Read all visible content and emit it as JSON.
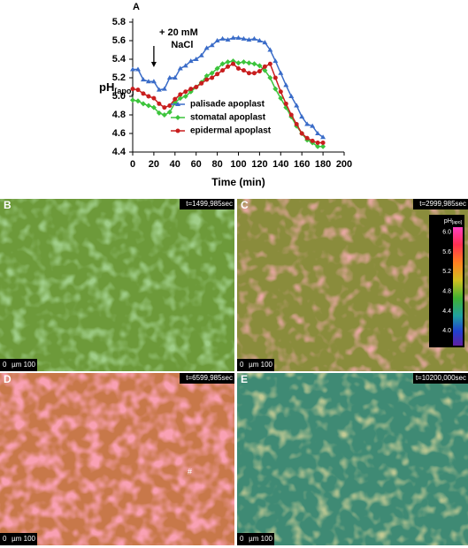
{
  "chart_data": {
    "type": "line",
    "panel_label": "A",
    "xlabel": "Time (min)",
    "ylabel": "pH",
    "ylabel_sub": "[apo]",
    "x": [
      0,
      5,
      10,
      15,
      20,
      25,
      30,
      35,
      40,
      45,
      50,
      55,
      60,
      65,
      70,
      75,
      80,
      85,
      90,
      95,
      100,
      105,
      110,
      115,
      120,
      125,
      130,
      135,
      140,
      145,
      150,
      155,
      160,
      165,
      170,
      175,
      180
    ],
    "series": [
      {
        "name": "palisade apoplast",
        "color": "#3a6cc8",
        "marker": "triangle",
        "values": [
          5.29,
          5.29,
          5.18,
          5.16,
          5.16,
          5.07,
          5.08,
          5.2,
          5.2,
          5.3,
          5.33,
          5.38,
          5.4,
          5.44,
          5.52,
          5.55,
          5.6,
          5.62,
          5.61,
          5.63,
          5.63,
          5.62,
          5.61,
          5.62,
          5.6,
          5.58,
          5.5,
          5.38,
          5.25,
          5.12,
          5.0,
          4.9,
          4.78,
          4.7,
          4.68,
          4.6,
          4.56
        ]
      },
      {
        "name": "stomatal apoplast",
        "color": "#3cc43c",
        "marker": "diamond",
        "values": [
          4.96,
          4.95,
          4.92,
          4.9,
          4.88,
          4.82,
          4.8,
          4.83,
          4.93,
          4.98,
          5.0,
          5.05,
          5.1,
          5.15,
          5.22,
          5.25,
          5.3,
          5.35,
          5.37,
          5.38,
          5.36,
          5.37,
          5.36,
          5.35,
          5.33,
          5.28,
          5.2,
          5.08,
          4.98,
          4.88,
          4.78,
          4.68,
          4.6,
          4.53,
          4.5,
          4.46,
          4.46
        ]
      },
      {
        "name": "epidermal apoplast",
        "color": "#c81e1e",
        "marker": "circle",
        "values": [
          5.08,
          5.07,
          5.03,
          5.0,
          4.98,
          4.92,
          4.88,
          4.9,
          4.97,
          5.02,
          5.05,
          5.08,
          5.1,
          5.14,
          5.18,
          5.2,
          5.24,
          5.28,
          5.32,
          5.35,
          5.3,
          5.28,
          5.25,
          5.25,
          5.27,
          5.32,
          5.35,
          5.2,
          5.05,
          4.92,
          4.8,
          4.7,
          4.6,
          4.55,
          4.52,
          4.5,
          4.5
        ]
      }
    ],
    "xlim": [
      0,
      200
    ],
    "xticks": [
      0,
      20,
      40,
      60,
      80,
      100,
      120,
      140,
      160,
      180,
      200
    ],
    "ylim": [
      4.4,
      5.8
    ],
    "yticks": [
      4.4,
      4.6,
      4.8,
      {
        "value": 5,
        "label": "5.0"
      },
      5.2,
      5.4,
      5.6,
      5.8
    ],
    "legend_position": "lower-center",
    "annotation": {
      "lines": [
        "+ 20 mM",
        "NaCl"
      ],
      "x": 20
    }
  },
  "images": [
    {
      "label": "B",
      "time": "t=1499,985sec",
      "scale": [
        "0",
        "µm 100"
      ]
    },
    {
      "label": "C",
      "time": "t=2999,985sec",
      "scale": [
        "0",
        "µm 100"
      ],
      "colorbar": {
        "title": "pH",
        "title_sub": "[apo]",
        "lim": [
          3.7,
          6.1
        ],
        "ticks": [
          {
            "value": 6,
            "label": "6.0"
          },
          5.6,
          5.2,
          4.8,
          4.4,
          {
            "value": 4,
            "label": "4.0"
          }
        ]
      }
    },
    {
      "label": "D",
      "time": "t=6599,985sec",
      "scale": [
        "0",
        "µm 100"
      ],
      "mark": "#"
    },
    {
      "label": "E",
      "time": "t=10200,000sec",
      "scale": [
        "0",
        "µm 100"
      ]
    }
  ]
}
